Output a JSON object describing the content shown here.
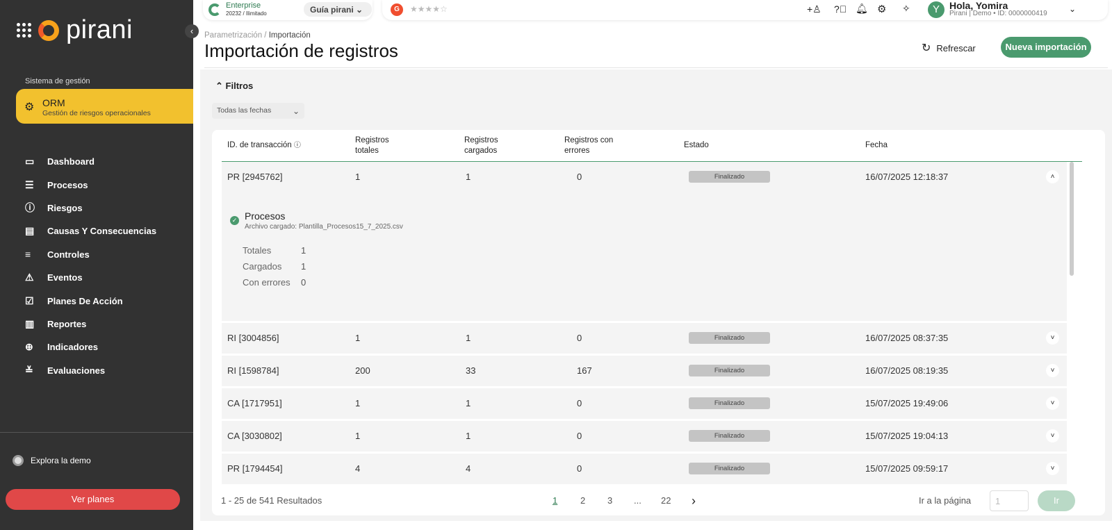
{
  "sidebar": {
    "logo": "pirani",
    "system_label": "Sistema de gestión",
    "module": {
      "title": "ORM",
      "subtitle": "Gestión de riesgos operacionales"
    },
    "items": [
      {
        "label": "Dashboard",
        "icon": "monitor-icon"
      },
      {
        "label": "Procesos",
        "icon": "list-icon"
      },
      {
        "label": "Riesgos",
        "icon": "alert-circle-icon"
      },
      {
        "label": "Causas Y Consecuencias",
        "icon": "cards-icon"
      },
      {
        "label": "Controles",
        "icon": "sliders-icon"
      },
      {
        "label": "Eventos",
        "icon": "warning-icon"
      },
      {
        "label": "Planes De Acción",
        "icon": "clipboard-check-icon"
      },
      {
        "label": "Reportes",
        "icon": "chart-icon"
      },
      {
        "label": "Indicadores",
        "icon": "crosshair-icon"
      },
      {
        "label": "Evaluaciones",
        "icon": "checklist-icon"
      }
    ],
    "demo": "Explora la demo",
    "plans_button": "Ver planes"
  },
  "topbar": {
    "plan": "Enterprise",
    "plan_detail": "20232 / Ilimitado",
    "guide": "Guía pirani",
    "rating_stars": 4,
    "greeting": "Hola, Yomira",
    "user_detail": "Pirani | Demo • ID: 0000000419",
    "avatar": "Y"
  },
  "header": {
    "breadcrumb_parent": "Parametrización /",
    "breadcrumb_current": "Importación",
    "title": "Importación de registros",
    "refresh": "Refrescar",
    "new_import": "Nueva importación"
  },
  "filters": {
    "label": "Filtros",
    "date": "Todas las fechas"
  },
  "table": {
    "columns": [
      "ID. de transacción",
      "Registros totales",
      "Registros cargados",
      "Registros con errores",
      "Estado",
      "Fecha"
    ],
    "rows": [
      {
        "id": "PR [2945762]",
        "total": "1",
        "loaded": "1",
        "errors": "0",
        "status": "Finalizado",
        "date": "16/07/2025 12:18:37"
      },
      {
        "id": "RI [3004856]",
        "total": "1",
        "loaded": "1",
        "errors": "0",
        "status": "Finalizado",
        "date": "16/07/2025 08:37:35"
      },
      {
        "id": "RI [1598784]",
        "total": "200",
        "loaded": "33",
        "errors": "167",
        "status": "Finalizado",
        "date": "16/07/2025 08:19:35"
      },
      {
        "id": "CA [1717951]",
        "total": "1",
        "loaded": "1",
        "errors": "0",
        "status": "Finalizado",
        "date": "15/07/2025 19:49:06"
      },
      {
        "id": "CA [3030802]",
        "total": "1",
        "loaded": "1",
        "errors": "0",
        "status": "Finalizado",
        "date": "15/07/2025 19:04:13"
      },
      {
        "id": "PR [1794454]",
        "total": "4",
        "loaded": "4",
        "errors": "0",
        "status": "Finalizado",
        "date": "15/07/2025 09:59:17"
      }
    ],
    "expanded": {
      "title": "Procesos",
      "file": "Archivo cargado: Plantilla_Procesos15_7_2025.csv",
      "stats": [
        {
          "label": "Totales",
          "value": "1"
        },
        {
          "label": "Cargados",
          "value": "1"
        },
        {
          "label": "Con errores",
          "value": "0"
        }
      ]
    }
  },
  "pagination": {
    "summary": "1 - 25 de 541 Resultados",
    "pages": [
      "1",
      "2",
      "3",
      "...",
      "22"
    ],
    "current": "1",
    "goto_label": "Ir a la página",
    "goto_value": "1",
    "go": "Ir"
  }
}
